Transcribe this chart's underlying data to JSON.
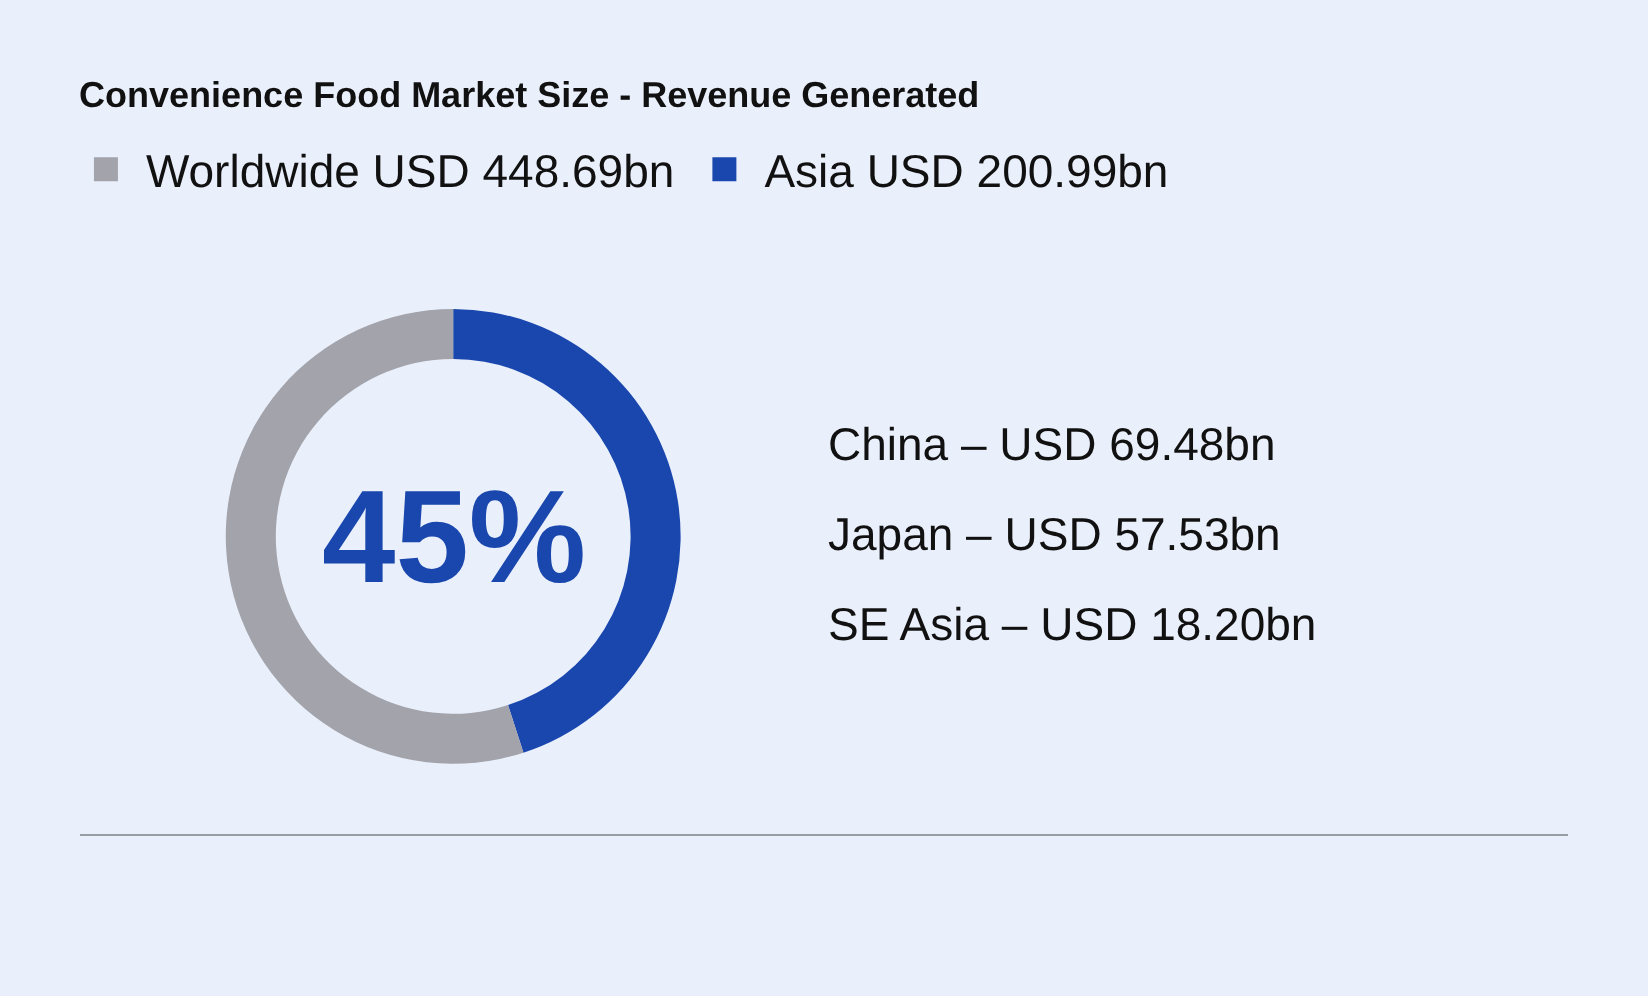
{
  "chart_data": {
    "type": "donut",
    "title": "Convenience Food Market Size - Revenue Generated",
    "categories": [
      "Worldwide USD 448.69bn",
      "Asia USD 200.99bn"
    ],
    "values": [
      55,
      45
    ],
    "colors": [
      "#a2a3ab",
      "#1a47ae"
    ],
    "legend": "top right",
    "annotations": [
      "45%",
      "China – USD 69.48bn",
      "Japan – USD 57.53bn",
      "SE Asia – USD 18.20bn"
    ]
  }
}
